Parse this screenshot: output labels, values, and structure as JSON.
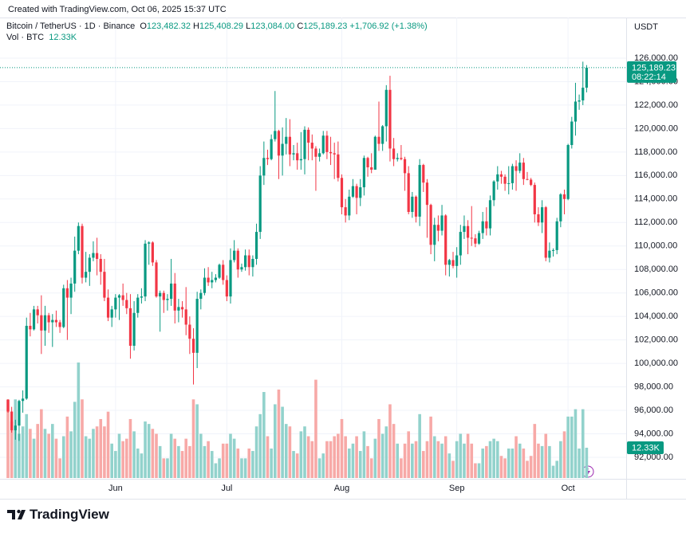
{
  "header": {
    "created": "Created with TradingView.com, Oct 06, 2025 15:37 UTC",
    "symbol": "Bitcoin / TetherUS · 1D · Binance",
    "ohlc": [
      {
        "key": "O",
        "value": "123,482.32"
      },
      {
        "key": "H",
        "value": "125,408.29"
      },
      {
        "key": "L",
        "value": "123,084.00"
      },
      {
        "key": "C",
        "value": "125,189.23"
      }
    ],
    "change": "+1,706.92 (+1.38%)",
    "volume_title": "Vol · BTC",
    "brand": "TradingView"
  },
  "chart_data": {
    "type": "candlestick",
    "y_axis_title": "USDT",
    "categories": [
      null,
      null,
      null,
      null,
      null,
      null,
      null,
      null,
      null,
      null,
      null,
      null,
      null,
      null,
      null,
      null,
      null,
      null,
      null,
      null,
      null,
      null,
      null,
      null,
      null,
      null,
      null,
      null,
      null,
      "Jun",
      null,
      null,
      null,
      null,
      null,
      null,
      null,
      null,
      null,
      null,
      null,
      null,
      null,
      null,
      null,
      null,
      null,
      null,
      null,
      null,
      null,
      null,
      null,
      null,
      null,
      null,
      null,
      null,
      null,
      "Jul",
      null,
      null,
      null,
      null,
      null,
      null,
      null,
      null,
      null,
      null,
      null,
      null,
      null,
      null,
      null,
      null,
      null,
      null,
      null,
      null,
      null,
      null,
      null,
      null,
      null,
      null,
      null,
      null,
      null,
      null,
      "Aug",
      null,
      null,
      null,
      null,
      null,
      null,
      null,
      null,
      null,
      null,
      null,
      null,
      null,
      null,
      null,
      null,
      null,
      null,
      null,
      null,
      null,
      null,
      null,
      null,
      null,
      null,
      null,
      null,
      null,
      null,
      "Sep",
      null,
      null,
      null,
      null,
      null,
      null,
      null,
      null,
      null,
      null,
      null,
      null,
      null,
      null,
      null,
      null,
      null,
      null,
      null,
      null,
      null,
      null,
      null,
      null,
      null,
      null,
      null,
      null,
      null,
      "Oct",
      null,
      null,
      null,
      null,
      null
    ],
    "candles": [
      [
        96900,
        96950,
        95800,
        95900
      ],
      [
        95900,
        96300,
        94100,
        94300
      ],
      [
        94300,
        95200,
        93500,
        94700
      ],
      [
        94700,
        96900,
        93400,
        96800
      ],
      [
        96800,
        97700,
        95800,
        97000
      ],
      [
        97000,
        103900,
        96900,
        103200
      ],
      [
        103200,
        104300,
        102300,
        102900
      ],
      [
        102900,
        104900,
        102800,
        104600
      ],
      [
        104600,
        104900,
        103400,
        104100
      ],
      [
        104100,
        105800,
        100800,
        102800
      ],
      [
        102800,
        104900,
        101500,
        104100
      ],
      [
        104100,
        104300,
        102600,
        103500
      ],
      [
        103500,
        104200,
        101400,
        103700
      ],
      [
        103700,
        104500,
        103100,
        103500
      ],
      [
        103500,
        103700,
        102600,
        103100
      ],
      [
        103100,
        106700,
        103000,
        106400
      ],
      [
        106400,
        107100,
        102000,
        105600
      ],
      [
        105600,
        107300,
        104200,
        106800
      ],
      [
        106800,
        110800,
        106100,
        109600
      ],
      [
        109600,
        112000,
        109300,
        111700
      ],
      [
        111700,
        111900,
        106800,
        107300
      ],
      [
        107300,
        109500,
        106900,
        107800
      ],
      [
        107800,
        109300,
        106600,
        109000
      ],
      [
        109000,
        110400,
        108700,
        109400
      ],
      [
        109400,
        110700,
        107500,
        108900
      ],
      [
        108900,
        109300,
        106700,
        107800
      ],
      [
        107800,
        108900,
        105300,
        105600
      ],
      [
        105600,
        106300,
        103600,
        103900
      ],
      [
        103900,
        104900,
        103100,
        104600
      ],
      [
        104600,
        105900,
        103900,
        105600
      ],
      [
        105600,
        105900,
        103700,
        105800
      ],
      [
        105800,
        106800,
        104900,
        105400
      ],
      [
        105400,
        106000,
        104200,
        104700
      ],
      [
        104700,
        105900,
        100400,
        101500
      ],
      [
        101500,
        105300,
        101100,
        104300
      ],
      [
        104300,
        105900,
        103900,
        105600
      ],
      [
        105600,
        106400,
        105100,
        105700
      ],
      [
        105700,
        110500,
        105300,
        110200
      ],
      [
        110200,
        110400,
        108400,
        110300
      ],
      [
        110300,
        110400,
        108300,
        108600
      ],
      [
        108600,
        108800,
        105600,
        105700
      ],
      [
        105700,
        106200,
        102700,
        106000
      ],
      [
        106000,
        106200,
        104300,
        105400
      ],
      [
        105400,
        105900,
        104500,
        105500
      ],
      [
        105500,
        108900,
        104900,
        106800
      ],
      [
        106800,
        107700,
        103400,
        104500
      ],
      [
        104500,
        105500,
        103500,
        104800
      ],
      [
        104800,
        105300,
        103900,
        104600
      ],
      [
        104600,
        106500,
        102400,
        103300
      ],
      [
        103300,
        104000,
        100800,
        102100
      ],
      [
        102100,
        103000,
        98200,
        100900
      ],
      [
        100900,
        106100,
        99600,
        105500
      ],
      [
        105500,
        106300,
        104600,
        106000
      ],
      [
        106000,
        108100,
        105800,
        107300
      ],
      [
        107300,
        108200,
        106600,
        106900
      ],
      [
        106900,
        107800,
        106400,
        107100
      ],
      [
        107100,
        107600,
        106900,
        107300
      ],
      [
        107300,
        108500,
        107200,
        108400
      ],
      [
        108400,
        108800,
        106700,
        107100
      ],
      [
        107100,
        107500,
        105300,
        105700
      ],
      [
        105700,
        109800,
        105100,
        108800
      ],
      [
        108800,
        110500,
        108600,
        109600
      ],
      [
        109600,
        109800,
        107300,
        108000
      ],
      [
        108000,
        108500,
        107800,
        108200
      ],
      [
        108200,
        109700,
        107900,
        109200
      ],
      [
        109200,
        109700,
        107500,
        108200
      ],
      [
        108200,
        109200,
        107400,
        108900
      ],
      [
        108900,
        111900,
        108400,
        111200
      ],
      [
        111200,
        116800,
        110600,
        116000
      ],
      [
        116000,
        118900,
        115200,
        117500
      ],
      [
        117500,
        118200,
        116900,
        117400
      ],
      [
        117400,
        119500,
        117300,
        119100
      ],
      [
        119100,
        123200,
        118900,
        119800
      ],
      [
        119800,
        119900,
        115700,
        117700
      ],
      [
        117700,
        120100,
        116000,
        118700
      ],
      [
        118700,
        120900,
        117800,
        119300
      ],
      [
        119300,
        120800,
        116800,
        117800
      ],
      [
        117800,
        118600,
        117300,
        117900
      ],
      [
        117900,
        118800,
        116500,
        117300
      ],
      [
        117300,
        119700,
        116500,
        117400
      ],
      [
        117400,
        120200,
        116100,
        119900
      ],
      [
        119900,
        120100,
        117300,
        118800
      ],
      [
        118800,
        119500,
        117300,
        118300
      ],
      [
        118300,
        118500,
        114700,
        117600
      ],
      [
        117600,
        118300,
        117200,
        117900
      ],
      [
        117900,
        119800,
        117800,
        119400
      ],
      [
        119400,
        119800,
        117400,
        118000
      ],
      [
        118000,
        119300,
        116900,
        117900
      ],
      [
        117900,
        118800,
        115700,
        117800
      ],
      [
        117800,
        118900,
        115500,
        115800
      ],
      [
        115800,
        116100,
        112700,
        113300
      ],
      [
        113300,
        114000,
        112000,
        112600
      ],
      [
        112600,
        114800,
        112200,
        114200
      ],
      [
        114200,
        115700,
        114100,
        115100
      ],
      [
        115100,
        115300,
        112700,
        114100
      ],
      [
        114100,
        115700,
        113400,
        115000
      ],
      [
        115000,
        117700,
        114300,
        117500
      ],
      [
        117500,
        117600,
        115900,
        116700
      ],
      [
        116700,
        117900,
        116200,
        116500
      ],
      [
        116500,
        119400,
        116500,
        119300
      ],
      [
        119300,
        122300,
        118100,
        118700
      ],
      [
        118700,
        120300,
        118100,
        120200
      ],
      [
        120200,
        123700,
        118900,
        123300
      ],
      [
        123300,
        124500,
        117200,
        118300
      ],
      [
        118300,
        119200,
        116800,
        117400
      ],
      [
        117400,
        117900,
        117200,
        117500
      ],
      [
        117500,
        118600,
        117300,
        117400
      ],
      [
        117400,
        117600,
        114700,
        116200
      ],
      [
        116200,
        116800,
        112700,
        112900
      ],
      [
        112900,
        114600,
        112400,
        114200
      ],
      [
        114200,
        114300,
        112000,
        112500
      ],
      [
        112500,
        117400,
        111700,
        116900
      ],
      [
        116900,
        117000,
        114600,
        115400
      ],
      [
        115400,
        115700,
        110700,
        113500
      ],
      [
        113500,
        113600,
        109300,
        110100
      ],
      [
        110100,
        112400,
        108700,
        111800
      ],
      [
        111800,
        112600,
        110400,
        111300
      ],
      [
        111300,
        113500,
        110900,
        112600
      ],
      [
        112600,
        112700,
        107500,
        108400
      ],
      [
        108400,
        108900,
        107400,
        108800
      ],
      [
        108800,
        109500,
        108100,
        108300
      ],
      [
        108300,
        109900,
        107300,
        109200
      ],
      [
        109200,
        111800,
        108400,
        111200
      ],
      [
        111200,
        112600,
        110600,
        111700
      ],
      [
        111700,
        112200,
        109300,
        110700
      ],
      [
        110700,
        113400,
        110000,
        110650
      ],
      [
        110650,
        111000,
        109900,
        110200
      ],
      [
        110200,
        111300,
        110100,
        111100
      ],
      [
        111100,
        112900,
        110600,
        112100
      ],
      [
        112100,
        113300,
        110900,
        111500
      ],
      [
        111500,
        114300,
        110900,
        113900
      ],
      [
        113900,
        115600,
        113400,
        115500
      ],
      [
        115500,
        116800,
        114800,
        116100
      ],
      [
        116100,
        116400,
        115300,
        115900
      ],
      [
        115900,
        116100,
        114700,
        115300
      ],
      [
        115300,
        116800,
        114400,
        115350
      ],
      [
        115350,
        117000,
        114800,
        116800
      ],
      [
        116800,
        117300,
        114700,
        116400
      ],
      [
        116400,
        117900,
        116200,
        117100
      ],
      [
        117100,
        117500,
        115200,
        115700
      ],
      [
        115700,
        116300,
        115600,
        115650
      ],
      [
        115650,
        115800,
        115100,
        115200
      ],
      [
        115200,
        115400,
        112000,
        112700
      ],
      [
        112700,
        113300,
        111700,
        112000
      ],
      [
        112000,
        113900,
        111100,
        113300
      ],
      [
        113300,
        113400,
        108700,
        109000
      ],
      [
        109000,
        110300,
        108600,
        109600
      ],
      [
        109600,
        109800,
        109100,
        109650
      ],
      [
        109650,
        112400,
        109300,
        112100
      ],
      [
        112100,
        114500,
        111600,
        114400
      ],
      [
        114400,
        114800,
        112700,
        114000
      ],
      [
        114000,
        118700,
        113900,
        118600
      ],
      [
        118600,
        121000,
        118300,
        120600
      ],
      [
        120600,
        123900,
        119400,
        122300
      ],
      [
        122300,
        122900,
        121600,
        122400
      ],
      [
        122400,
        125700,
        122000,
        123482.32
      ],
      [
        123482.32,
        125408.29,
        123084,
        125189.23
      ]
    ],
    "volume": [
      32000,
      23000,
      32000,
      18000,
      21000,
      26000,
      20000,
      16000,
      22000,
      28000,
      20000,
      18000,
      22000,
      16000,
      8000,
      17000,
      25000,
      19000,
      31000,
      47000,
      32000,
      17000,
      16000,
      20000,
      21000,
      24000,
      21000,
      27000,
      14000,
      11000,
      18000,
      15000,
      16000,
      24000,
      19000,
      12000,
      10000,
      23000,
      22000,
      20000,
      18000,
      13000,
      8000,
      8000,
      18000,
      16000,
      13000,
      11000,
      16000,
      13000,
      32000,
      30000,
      18000,
      13000,
      15000,
      11000,
      6000,
      8000,
      14000,
      14000,
      18000,
      16000,
      12000,
      8000,
      8000,
      12000,
      11000,
      21000,
      26000,
      35000,
      17000,
      12000,
      30000,
      36000,
      29000,
      22000,
      21000,
      11000,
      10000,
      19000,
      21000,
      17000,
      15000,
      40000,
      8000,
      10000,
      15000,
      15000,
      17000,
      18000,
      24000,
      17000,
      12000,
      14000,
      17000,
      11000,
      19000,
      13000,
      8000,
      16000,
      24000,
      18000,
      21000,
      30000,
      22000,
      14000,
      8000,
      14000,
      19000,
      14000,
      15000,
      26000,
      11000,
      15000,
      25000,
      17000,
      15000,
      14000,
      17000,
      10000,
      7000,
      15000,
      18000,
      14000,
      18000,
      14000,
      6000,
      6000,
      12000,
      13000,
      15000,
      16000,
      15000,
      9000,
      8000,
      12000,
      12000,
      17000,
      14000,
      12000,
      7000,
      9000,
      22000,
      14000,
      13000,
      18000,
      13000,
      5000,
      7000,
      15000,
      19000,
      25000,
      25000,
      28000,
      12000,
      28000,
      12330
    ],
    "last_volume_label": "12.33K",
    "last_price": {
      "value": 125189.23,
      "label": "125,189.23"
    },
    "countdown": "08:22:14",
    "up_color": "#089981",
    "down_color": "#f23645",
    "volume_up_color": "#92d2cc",
    "volume_down_color": "#f7a9a7",
    "ylim": [
      90235,
      129460
    ],
    "yticks": [
      {
        "value": 92000,
        "label": "92,000.00"
      },
      {
        "value": 94000,
        "label": "94,000.00"
      },
      {
        "value": 96000,
        "label": "96,000.00"
      },
      {
        "value": 98000,
        "label": "98,000.00"
      },
      {
        "value": 100000,
        "label": "100,000.00"
      },
      {
        "value": 102000,
        "label": "102,000.00"
      },
      {
        "value": 104000,
        "label": "104,000.00"
      },
      {
        "value": 106000,
        "label": "106,000.00"
      },
      {
        "value": 108000,
        "label": "108,000.00"
      },
      {
        "value": 110000,
        "label": "110,000.00"
      },
      {
        "value": 112000,
        "label": "112,000.00"
      },
      {
        "value": 114000,
        "label": "114,000.00"
      },
      {
        "value": 116000,
        "label": "116,000.00"
      },
      {
        "value": 118000,
        "label": "118,000.00"
      },
      {
        "value": 120000,
        "label": "120,000.00"
      },
      {
        "value": 122000,
        "label": "122,000.00"
      },
      {
        "value": 124000,
        "label": "124,000.00"
      },
      {
        "value": 126000,
        "label": "126,000.00"
      }
    ],
    "grid": true
  }
}
